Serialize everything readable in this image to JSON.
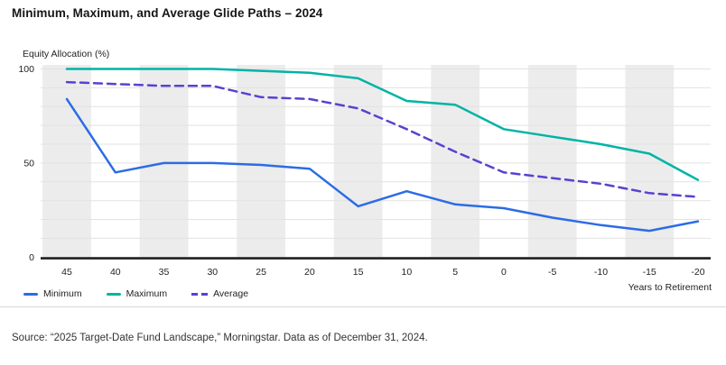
{
  "title": "Minimum, Maximum, and Average Glide Paths – 2024",
  "source": "Source: “2025 Target-Date Fund Landscape,” Morningstar. Data as of December 31, 2024.",
  "chart_data": {
    "type": "line",
    "title": "Minimum, Maximum, and Average Glide Paths – 2024",
    "xlabel": "Years to Retirement",
    "ylabel": "Equity Allocation (%)",
    "ylim": [
      0,
      100
    ],
    "yticks": [
      0,
      50,
      100
    ],
    "grid_step": 10,
    "grid": true,
    "legend_position": "bottom-left",
    "categories": [
      45,
      40,
      35,
      30,
      25,
      20,
      15,
      10,
      5,
      0,
      -5,
      -10,
      -15,
      -20
    ],
    "series": [
      {
        "name": "Minimum",
        "style": "solid",
        "color": "#2b6ce6",
        "values": [
          84,
          45,
          50,
          50,
          49,
          47,
          27,
          35,
          28,
          26,
          21,
          17,
          14,
          19
        ]
      },
      {
        "name": "Maximum",
        "style": "solid",
        "color": "#00b3a6",
        "values": [
          100,
          100,
          100,
          100,
          99,
          98,
          95,
          83,
          81,
          68,
          64,
          60,
          55,
          41
        ]
      },
      {
        "name": "Average",
        "style": "dashed",
        "color": "#5a41d0",
        "values": [
          93,
          92,
          91,
          91,
          85,
          84,
          79,
          68,
          56,
          45,
          42,
          39,
          34,
          32
        ]
      }
    ],
    "colors": {
      "stripe": "#ececec",
      "grid": "#e2e2e2",
      "axis": "#1f1f1f",
      "tick_text": "#1f1f1f"
    }
  }
}
